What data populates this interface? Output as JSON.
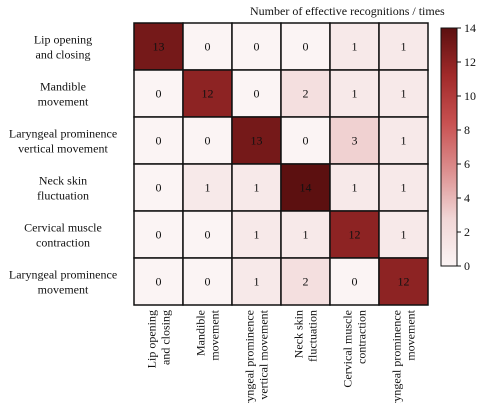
{
  "chart_data": {
    "type": "heatmap",
    "title": "",
    "colorbar_label": "Number of effective recognitions / times",
    "row_labels": [
      [
        "Lip opening",
        "and closing"
      ],
      [
        "Mandible",
        "movement"
      ],
      [
        "Laryngeal prominence",
        "vertical movement"
      ],
      [
        "Neck skin",
        "fluctuation"
      ],
      [
        "Cervical muscle",
        "contraction"
      ],
      [
        "Laryngeal prominence",
        "movement"
      ]
    ],
    "col_labels": [
      [
        "Lip opening",
        "and closing"
      ],
      [
        "Mandible",
        "movement"
      ],
      [
        "Laryngeal prominence",
        "vertical movement"
      ],
      [
        "Neck skin",
        "fluctuation"
      ],
      [
        "Cervical muscle",
        "contraction"
      ],
      [
        "Laryngeal prominence",
        "movement"
      ]
    ],
    "values": [
      [
        13,
        0,
        0,
        0,
        1,
        1
      ],
      [
        0,
        12,
        0,
        2,
        1,
        1
      ],
      [
        0,
        0,
        13,
        0,
        3,
        1
      ],
      [
        0,
        1,
        1,
        14,
        1,
        1
      ],
      [
        0,
        0,
        1,
        1,
        12,
        1
      ],
      [
        0,
        0,
        1,
        2,
        0,
        12
      ]
    ],
    "vmin": 0,
    "vmax": 14,
    "colorbar_ticks": [
      0,
      2,
      4,
      6,
      8,
      10,
      12,
      14
    ],
    "colormap": [
      "#fbf4f4",
      "#f1d6d6",
      "#dc8f8f",
      "#c85151",
      "#a12a2a",
      "#5c1010"
    ]
  }
}
